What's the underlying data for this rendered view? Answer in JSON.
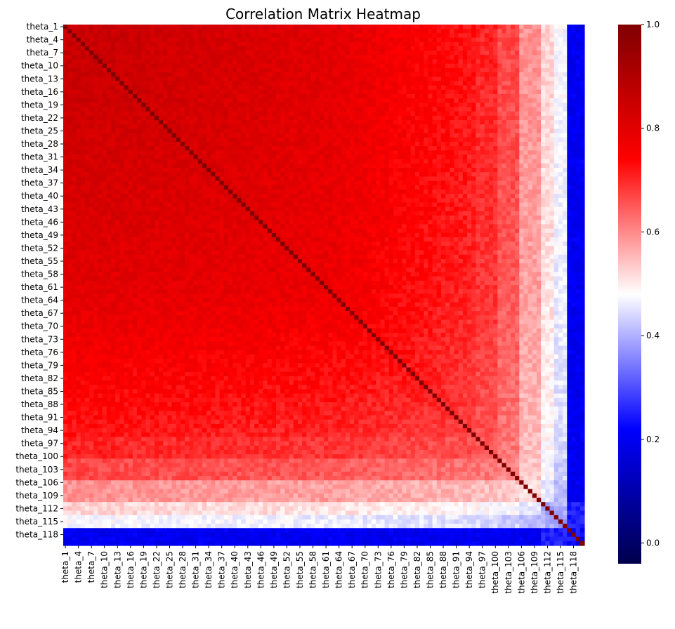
{
  "chart_data": {
    "type": "heatmap",
    "title": "Correlation Matrix Heatmap",
    "variable_prefix": "theta_",
    "n_variables": 120,
    "tick_labels": [
      "theta_1",
      "theta_4",
      "theta_7",
      "theta_10",
      "theta_13",
      "theta_16",
      "theta_19",
      "theta_22",
      "theta_25",
      "theta_28",
      "theta_31",
      "theta_34",
      "theta_37",
      "theta_40",
      "theta_43",
      "theta_46",
      "theta_49",
      "theta_52",
      "theta_55",
      "theta_58",
      "theta_61",
      "theta_64",
      "theta_67",
      "theta_70",
      "theta_73",
      "theta_76",
      "theta_79",
      "theta_82",
      "theta_85",
      "theta_88",
      "theta_91",
      "theta_94",
      "theta_97",
      "theta_100",
      "theta_103",
      "theta_106",
      "theta_109",
      "theta_112",
      "theta_115",
      "theta_118"
    ],
    "tick_every": 3,
    "diagonal_value": 1.0,
    "approx_block_values": {
      "theta_1_to_theta_95_mutual": 0.82,
      "theta_96_to_theta_105_with_rest": 0.72,
      "theta_106_to_theta_110_with_rest": 0.58,
      "theta_111_to_theta_116_with_rest": 0.48,
      "theta_117_to_theta_120_with_rest": 0.22
    },
    "colormap": "seismic",
    "colorbar": {
      "vmin": -0.04,
      "vmax": 1.0,
      "ticks": [
        "1.0",
        "0.8",
        "0.6",
        "0.4",
        "0.2",
        "0.0"
      ],
      "tick_values": [
        1.0,
        0.8,
        0.6,
        0.4,
        0.2,
        0.0
      ]
    },
    "colors": {
      "low": "#00004c",
      "mid_low": "#0000ff",
      "center": "#ffffff",
      "mid_high": "#ff0000",
      "high": "#800000"
    }
  }
}
